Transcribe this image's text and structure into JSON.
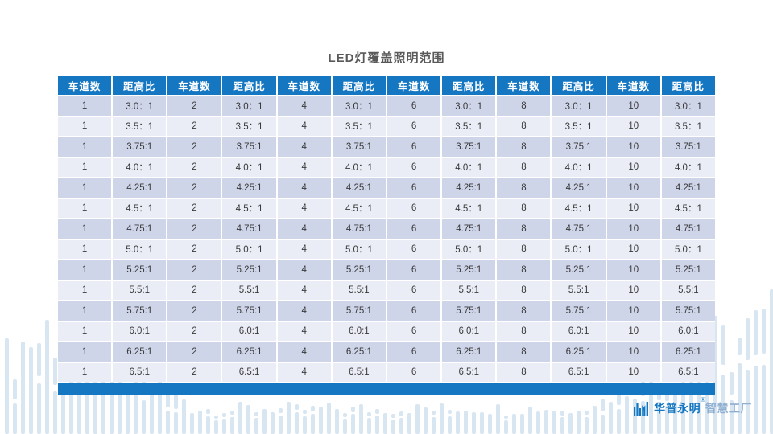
{
  "title": "LED灯覆盖照明范围",
  "table": {
    "lane_header": "车道数",
    "ratio_header": "距高比",
    "lanes": [
      "1",
      "2",
      "4",
      "6",
      "8",
      "10"
    ],
    "ratios": [
      "3.0：1",
      "3.5：1",
      "3.75:1",
      "4.0：1",
      "4.25:1",
      "4.5：1",
      "4.75:1",
      "5.0：1",
      "5.25:1",
      "5.5:1",
      "5.75:1",
      "6.0:1",
      "6.25:1",
      "6.5:1"
    ]
  },
  "brand": {
    "name": "华普永明",
    "reg": "®",
    "suffix": "智慧工厂"
  },
  "colors": {
    "header_blue": "#1577c2",
    "row_dark": "#cfd5e9",
    "row_light": "#eaedf6",
    "footer_bar_blue": "#1577c2",
    "decor_bar_blue": "#d8e6f2",
    "title_gray": "#595959",
    "brand_blue": "#1577c2",
    "brand_light_blue": "#8fafd2",
    "cell_text": "#3a3a3a"
  }
}
